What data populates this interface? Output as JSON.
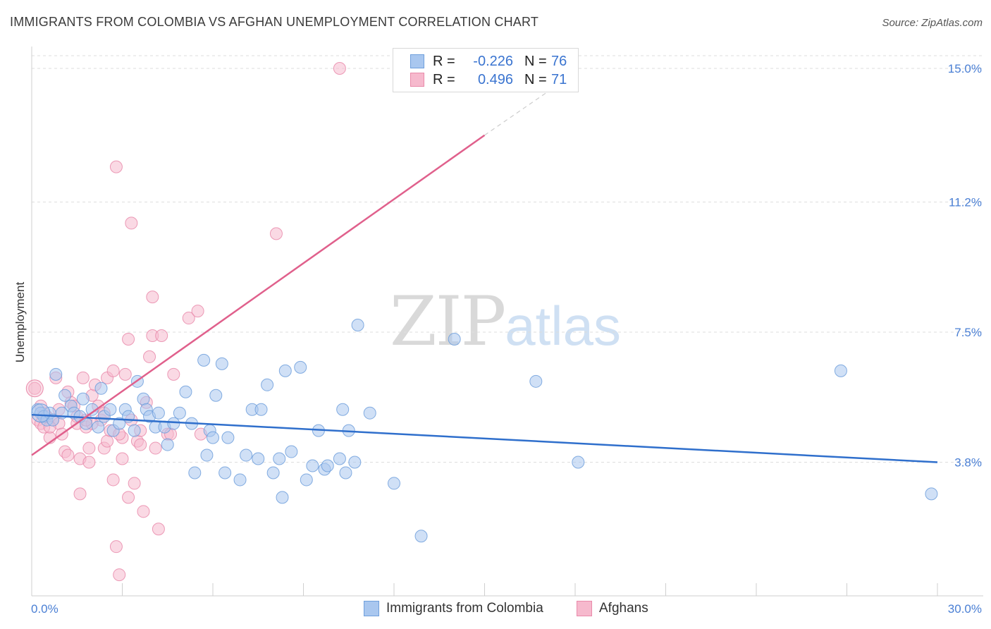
{
  "title": "IMMIGRANTS FROM COLOMBIA VS AFGHAN UNEMPLOYMENT CORRELATION CHART",
  "source": "Source: ZipAtlas.com",
  "watermark": {
    "zip": "ZIP",
    "atlas": "atlas"
  },
  "legend": {
    "rows": [
      {
        "r_label": "R =",
        "r_value": "-0.226",
        "n_label": "N =",
        "n_value": "76"
      },
      {
        "r_label": "R =",
        "r_value": "0.496",
        "n_label": "N =",
        "n_value": "71"
      }
    ]
  },
  "bottom_legend": [
    "Immigrants from Colombia",
    "Afghans"
  ],
  "colors": {
    "colombia_fill": "#a9c7ef",
    "colombia_stroke": "#6f9fdc",
    "colombia_line": "#2f6fcc",
    "afghan_fill": "#f6b9cd",
    "afghan_stroke": "#e98aaa",
    "afghan_line": "#e0608c",
    "grid": "#dedede",
    "tick_text": "#4a7fd4"
  },
  "chart_data": {
    "type": "scatter",
    "title": "IMMIGRANTS FROM COLOMBIA VS AFGHAN UNEMPLOYMENT CORRELATION CHART",
    "xlabel": "",
    "ylabel": "Unemployment",
    "xlim": [
      0,
      30
    ],
    "ylim": [
      0,
      15.5
    ],
    "x_tick_labels": [
      "0.0%",
      "30.0%"
    ],
    "y_ticks": [
      3.8,
      7.5,
      11.2,
      15.0
    ],
    "y_tick_labels": [
      "3.8%",
      "7.5%",
      "11.2%",
      "15.0%"
    ],
    "grid": true,
    "series": [
      {
        "name": "Immigrants from Colombia",
        "r": -0.226,
        "n": 76,
        "trend": {
          "x": [
            0,
            30
          ],
          "y": [
            5.15,
            3.8
          ]
        },
        "points": [
          [
            0.2,
            5.3
          ],
          [
            0.3,
            5.2
          ],
          [
            0.4,
            5.1
          ],
          [
            0.5,
            5.0
          ],
          [
            0.6,
            5.2
          ],
          [
            0.7,
            5.0
          ],
          [
            0.8,
            6.3
          ],
          [
            1.0,
            5.2
          ],
          [
            1.1,
            5.7
          ],
          [
            1.3,
            5.4
          ],
          [
            1.4,
            5.2
          ],
          [
            1.6,
            5.1
          ],
          [
            1.7,
            5.6
          ],
          [
            1.8,
            4.9
          ],
          [
            2.0,
            5.3
          ],
          [
            2.2,
            4.8
          ],
          [
            2.3,
            5.9
          ],
          [
            2.4,
            5.1
          ],
          [
            2.6,
            5.3
          ],
          [
            2.7,
            4.7
          ],
          [
            2.9,
            4.9
          ],
          [
            3.1,
            5.3
          ],
          [
            3.2,
            5.1
          ],
          [
            3.4,
            4.7
          ],
          [
            3.5,
            6.1
          ],
          [
            3.7,
            5.6
          ],
          [
            3.8,
            5.3
          ],
          [
            3.9,
            5.1
          ],
          [
            4.1,
            4.8
          ],
          [
            4.2,
            5.2
          ],
          [
            4.4,
            4.8
          ],
          [
            4.5,
            4.3
          ],
          [
            4.7,
            4.9
          ],
          [
            4.9,
            5.2
          ],
          [
            5.1,
            5.8
          ],
          [
            5.3,
            4.9
          ],
          [
            5.4,
            3.5
          ],
          [
            5.7,
            6.7
          ],
          [
            5.8,
            4.0
          ],
          [
            5.9,
            4.7
          ],
          [
            6.0,
            4.5
          ],
          [
            6.1,
            5.7
          ],
          [
            6.3,
            6.6
          ],
          [
            6.4,
            3.5
          ],
          [
            6.5,
            4.5
          ],
          [
            6.9,
            3.3
          ],
          [
            7.1,
            4.0
          ],
          [
            7.3,
            5.3
          ],
          [
            7.5,
            3.9
          ],
          [
            7.6,
            5.3
          ],
          [
            7.8,
            6.0
          ],
          [
            8.0,
            3.5
          ],
          [
            8.2,
            3.9
          ],
          [
            8.3,
            2.8
          ],
          [
            8.4,
            6.4
          ],
          [
            8.6,
            4.1
          ],
          [
            8.9,
            6.5
          ],
          [
            9.1,
            3.3
          ],
          [
            9.3,
            3.7
          ],
          [
            9.5,
            4.7
          ],
          [
            9.7,
            3.6
          ],
          [
            9.8,
            3.7
          ],
          [
            10.2,
            3.9
          ],
          [
            10.3,
            5.3
          ],
          [
            10.4,
            3.5
          ],
          [
            10.5,
            4.7
          ],
          [
            10.7,
            3.8
          ],
          [
            10.8,
            7.7
          ],
          [
            11.2,
            5.2
          ],
          [
            12.0,
            3.2
          ],
          [
            12.9,
            1.7
          ],
          [
            14.0,
            7.3
          ],
          [
            16.7,
            6.1
          ],
          [
            18.1,
            3.8
          ],
          [
            26.8,
            6.4
          ],
          [
            29.8,
            2.9
          ]
        ]
      },
      {
        "name": "Afghans",
        "r": 0.496,
        "n": 71,
        "trend": {
          "x": [
            0,
            15.0
          ],
          "y": [
            4.0,
            13.1
          ]
        },
        "trend_dashed": {
          "x": [
            15.0,
            17.2
          ],
          "y": [
            13.1,
            14.4
          ]
        },
        "points": [
          [
            0.1,
            5.9
          ],
          [
            0.2,
            5.0
          ],
          [
            0.3,
            4.9
          ],
          [
            0.4,
            5.2
          ],
          [
            0.5,
            5.1
          ],
          [
            0.6,
            4.5
          ],
          [
            0.7,
            5.0
          ],
          [
            0.8,
            6.2
          ],
          [
            0.9,
            4.9
          ],
          [
            1.0,
            4.6
          ],
          [
            1.1,
            4.1
          ],
          [
            1.2,
            4.0
          ],
          [
            1.3,
            5.5
          ],
          [
            1.4,
            5.4
          ],
          [
            1.5,
            4.9
          ],
          [
            1.6,
            3.9
          ],
          [
            1.6,
            2.9
          ],
          [
            1.7,
            6.2
          ],
          [
            1.8,
            4.8
          ],
          [
            1.9,
            3.8
          ],
          [
            1.9,
            4.2
          ],
          [
            2.0,
            5.7
          ],
          [
            2.1,
            6.0
          ],
          [
            2.2,
            5.4
          ],
          [
            2.3,
            5.0
          ],
          [
            2.4,
            4.2
          ],
          [
            2.5,
            4.4
          ],
          [
            2.5,
            6.2
          ],
          [
            2.6,
            4.7
          ],
          [
            2.7,
            6.4
          ],
          [
            2.7,
            3.3
          ],
          [
            2.8,
            1.4
          ],
          [
            2.8,
            12.2
          ],
          [
            2.9,
            0.6
          ],
          [
            3.0,
            4.5
          ],
          [
            3.0,
            3.9
          ],
          [
            3.1,
            6.3
          ],
          [
            3.2,
            2.8
          ],
          [
            3.2,
            7.3
          ],
          [
            3.3,
            10.6
          ],
          [
            3.4,
            3.2
          ],
          [
            3.5,
            4.4
          ],
          [
            3.6,
            4.3
          ],
          [
            3.7,
            2.4
          ],
          [
            3.8,
            5.5
          ],
          [
            3.9,
            6.8
          ],
          [
            4.0,
            8.5
          ],
          [
            4.0,
            7.4
          ],
          [
            4.1,
            4.2
          ],
          [
            4.2,
            1.9
          ],
          [
            4.3,
            7.4
          ],
          [
            4.5,
            4.6
          ],
          [
            4.7,
            6.3
          ],
          [
            5.2,
            7.9
          ],
          [
            5.5,
            8.1
          ],
          [
            5.6,
            4.6
          ],
          [
            8.1,
            10.3
          ],
          [
            10.2,
            15.0
          ],
          [
            0.4,
            4.8
          ],
          [
            0.9,
            5.3
          ],
          [
            1.5,
            5.1
          ],
          [
            2.0,
            4.9
          ],
          [
            2.4,
            5.2
          ],
          [
            3.6,
            4.7
          ],
          [
            1.2,
            5.8
          ],
          [
            0.6,
            4.8
          ],
          [
            2.9,
            4.6
          ],
          [
            1.8,
            5.0
          ],
          [
            0.3,
            5.4
          ],
          [
            4.6,
            4.6
          ],
          [
            3.3,
            5.0
          ]
        ]
      }
    ]
  }
}
